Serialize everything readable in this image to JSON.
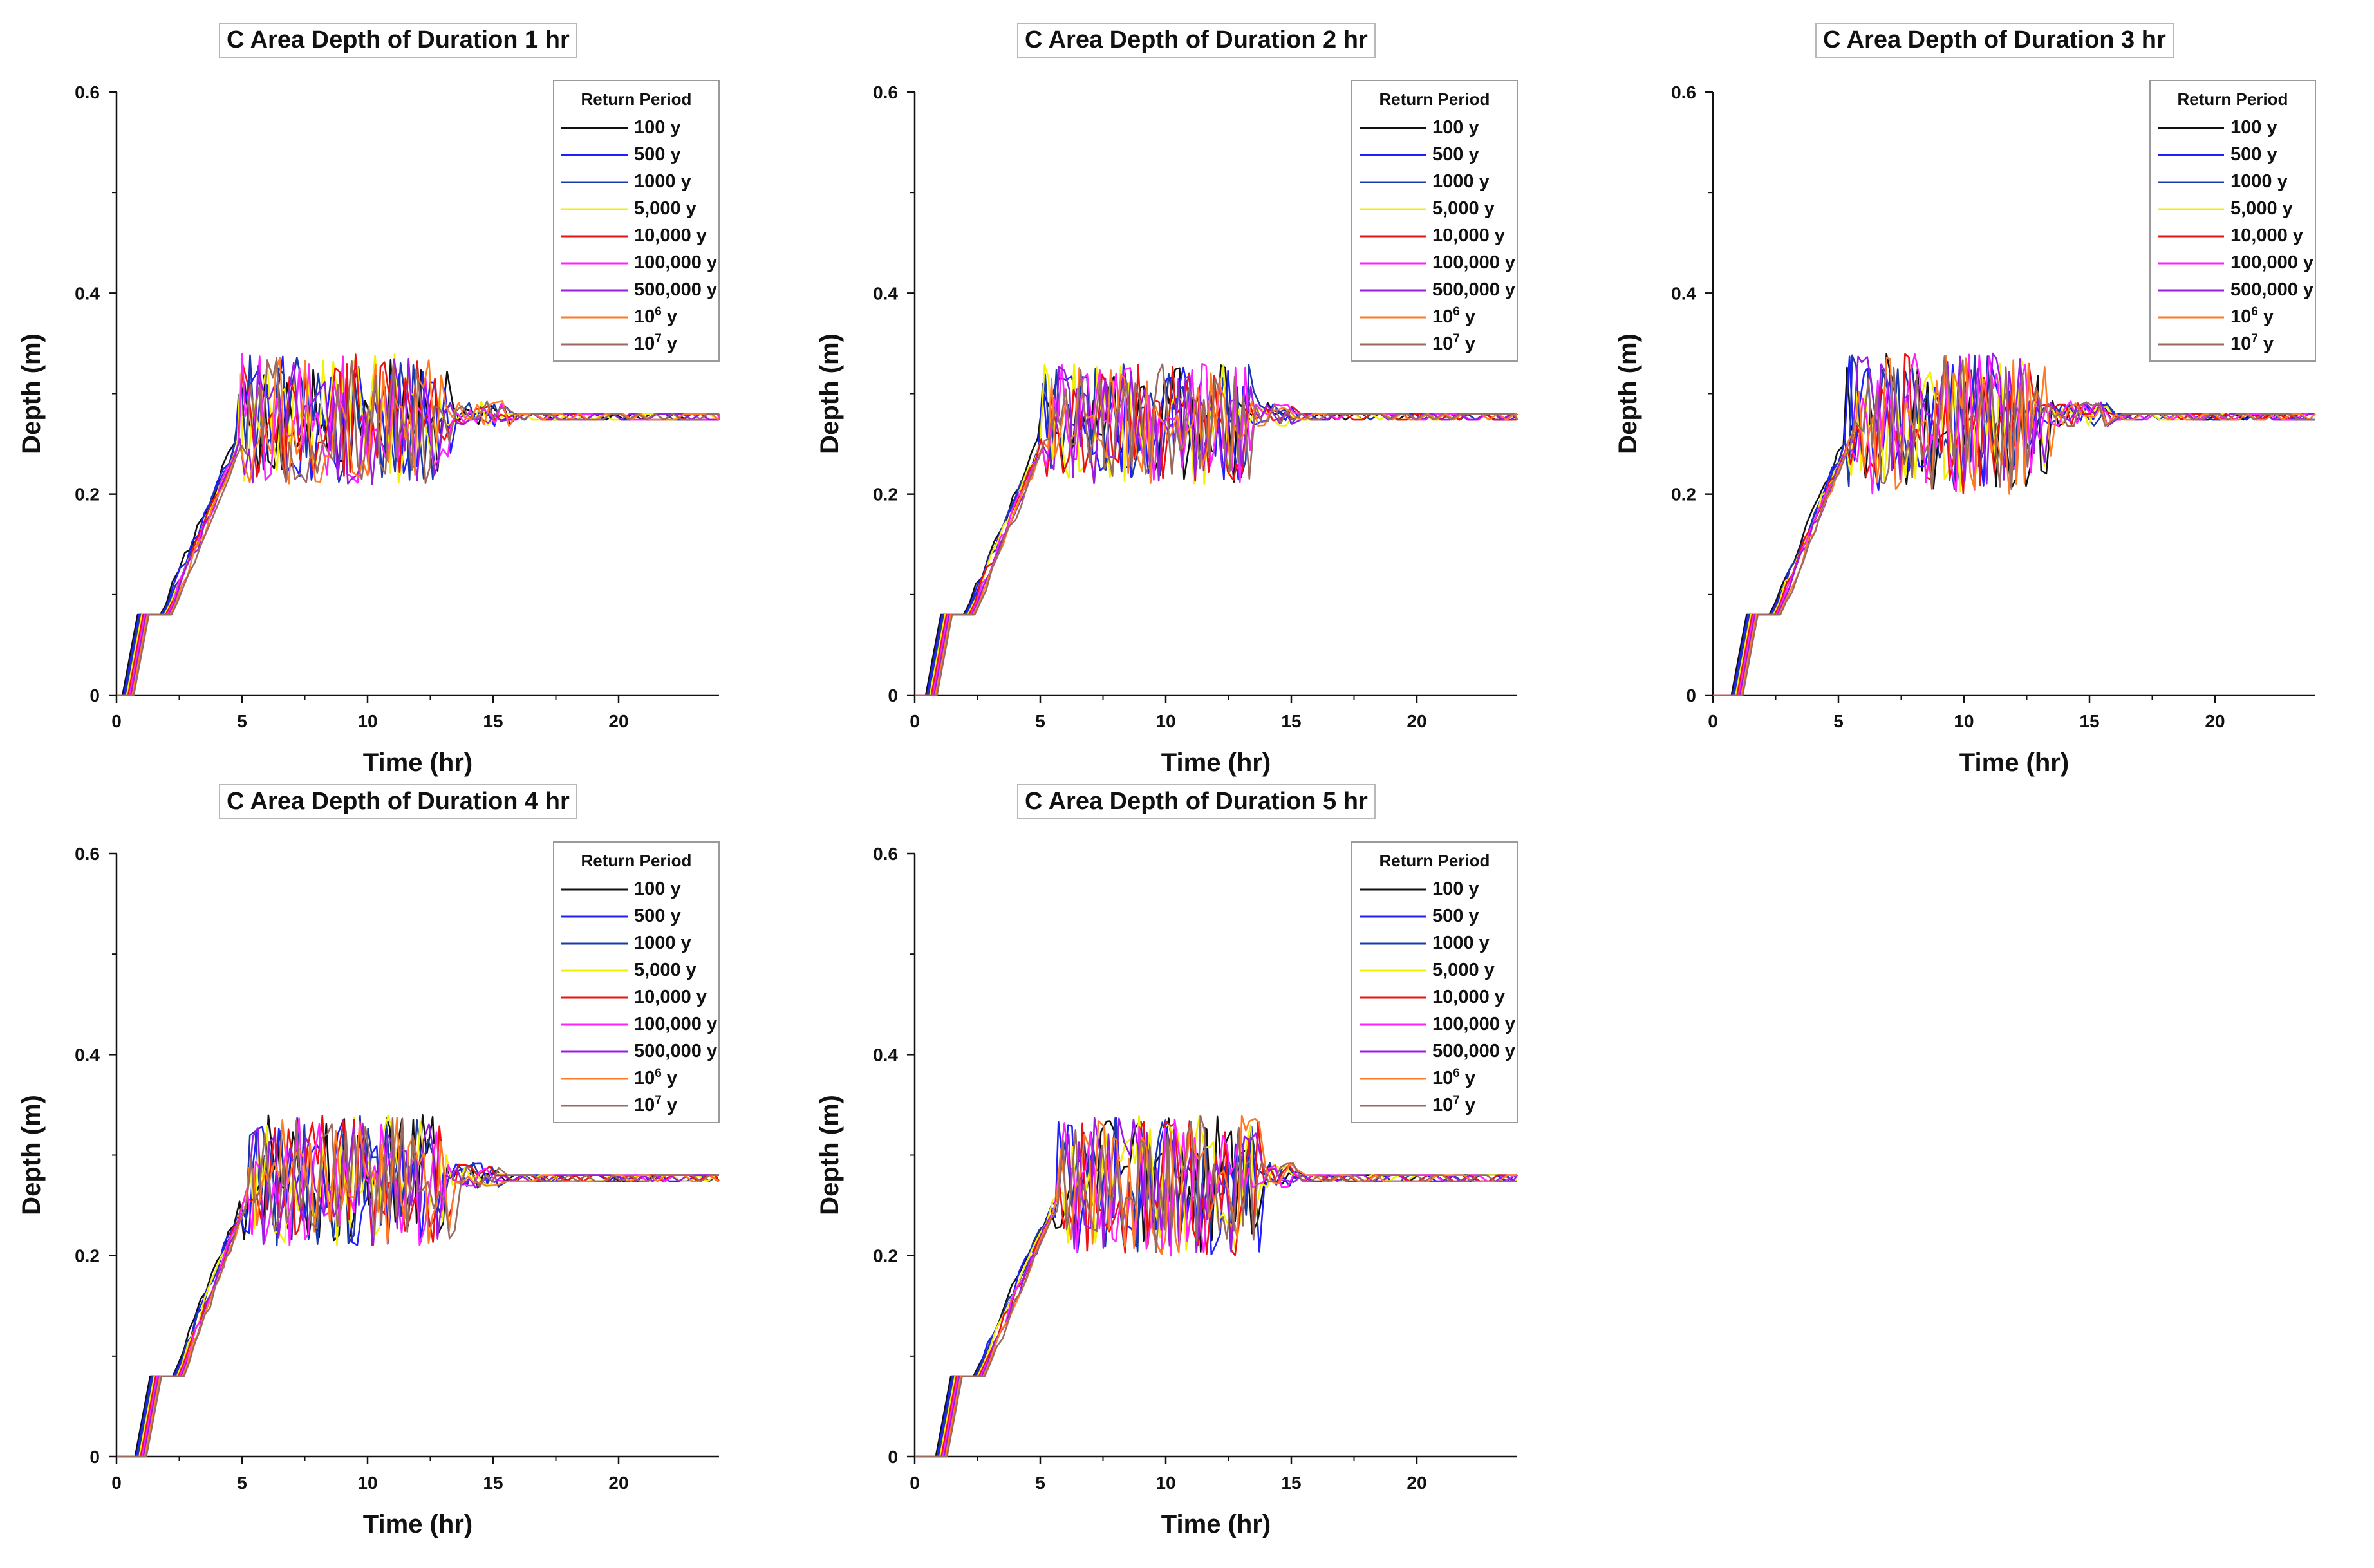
{
  "chart_data": {
    "type": "line",
    "shared": {
      "xlabel": "Time (hr)",
      "ylabel": "Depth (m)",
      "xlim": [
        0,
        24
      ],
      "ylim": [
        0,
        0.6
      ],
      "xticks": [
        0,
        5,
        10,
        15,
        20
      ],
      "xtick_labels": [
        "0",
        "5",
        "10",
        "15",
        "20"
      ],
      "yticks": [
        0,
        0.2,
        0.4,
        0.6
      ],
      "ytick_labels": [
        "0",
        "0.2",
        "0.4",
        "0.6"
      ],
      "legend_title": "Return Period",
      "legend_position": "top-right",
      "series": [
        {
          "name": "100 y",
          "label_base": "100 y",
          "color": "#111111"
        },
        {
          "name": "500 y",
          "label_base": "500 y",
          "color": "#2020ff"
        },
        {
          "name": "1000 y",
          "label_base": "1000 y",
          "color": "#1a3aa8"
        },
        {
          "name": "5,000 y",
          "label_base": "5,000 y",
          "color": "#f2f200"
        },
        {
          "name": "10,000 y",
          "label_base": "10,000 y",
          "color": "#ee1111"
        },
        {
          "name": "100,000 y",
          "label_base": "100,000 y",
          "color": "#ff22ff"
        },
        {
          "name": "500,000 y",
          "label_base": "500,000 y",
          "color": "#9a1ce0"
        },
        {
          "name": "10⁶ y",
          "label_base": "10",
          "label_sup": "6",
          "label_tail": " y",
          "color": "#ff7a22"
        },
        {
          "name": "10⁷ y",
          "label_base": "10",
          "label_sup": "7",
          "label_tail": " y",
          "color": "#9a6a60"
        }
      ]
    },
    "charts": [
      {
        "title": "C Area Depth of Duration 1 hr",
        "profile": {
          "rise_start": 0.4,
          "rise_end": 4.8,
          "plateau": 0.08,
          "osc_end": 13.0,
          "settle_end": 15.5,
          "steady": 0.28,
          "osc_low": 0.21,
          "osc_high": 0.34
        }
      },
      {
        "title": "C Area Depth of Duration 2 hr",
        "profile": {
          "rise_start": 0.6,
          "rise_end": 5.0,
          "plateau": 0.08,
          "osc_end": 13.2,
          "settle_end": 15.0,
          "steady": 0.28,
          "osc_low": 0.21,
          "osc_high": 0.33
        }
      },
      {
        "title": "C Area Depth of Duration 3 hr",
        "profile": {
          "rise_start": 0.9,
          "rise_end": 5.3,
          "plateau": 0.08,
          "osc_end": 13.0,
          "settle_end": 15.5,
          "steady": 0.28,
          "osc_low": 0.2,
          "osc_high": 0.34
        }
      },
      {
        "title": "C Area Depth of Duration 4 hr",
        "profile": {
          "rise_start": 0.9,
          "rise_end": 5.0,
          "plateau": 0.08,
          "osc_end": 13.0,
          "settle_end": 15.0,
          "steady": 0.28,
          "osc_low": 0.21,
          "osc_high": 0.34
        }
      },
      {
        "title": "C Area Depth of Duration 5 hr",
        "profile": {
          "rise_start": 1.0,
          "rise_end": 5.5,
          "plateau": 0.08,
          "osc_end": 13.6,
          "settle_end": 15.0,
          "steady": 0.28,
          "osc_low": 0.2,
          "osc_high": 0.34
        }
      }
    ]
  }
}
